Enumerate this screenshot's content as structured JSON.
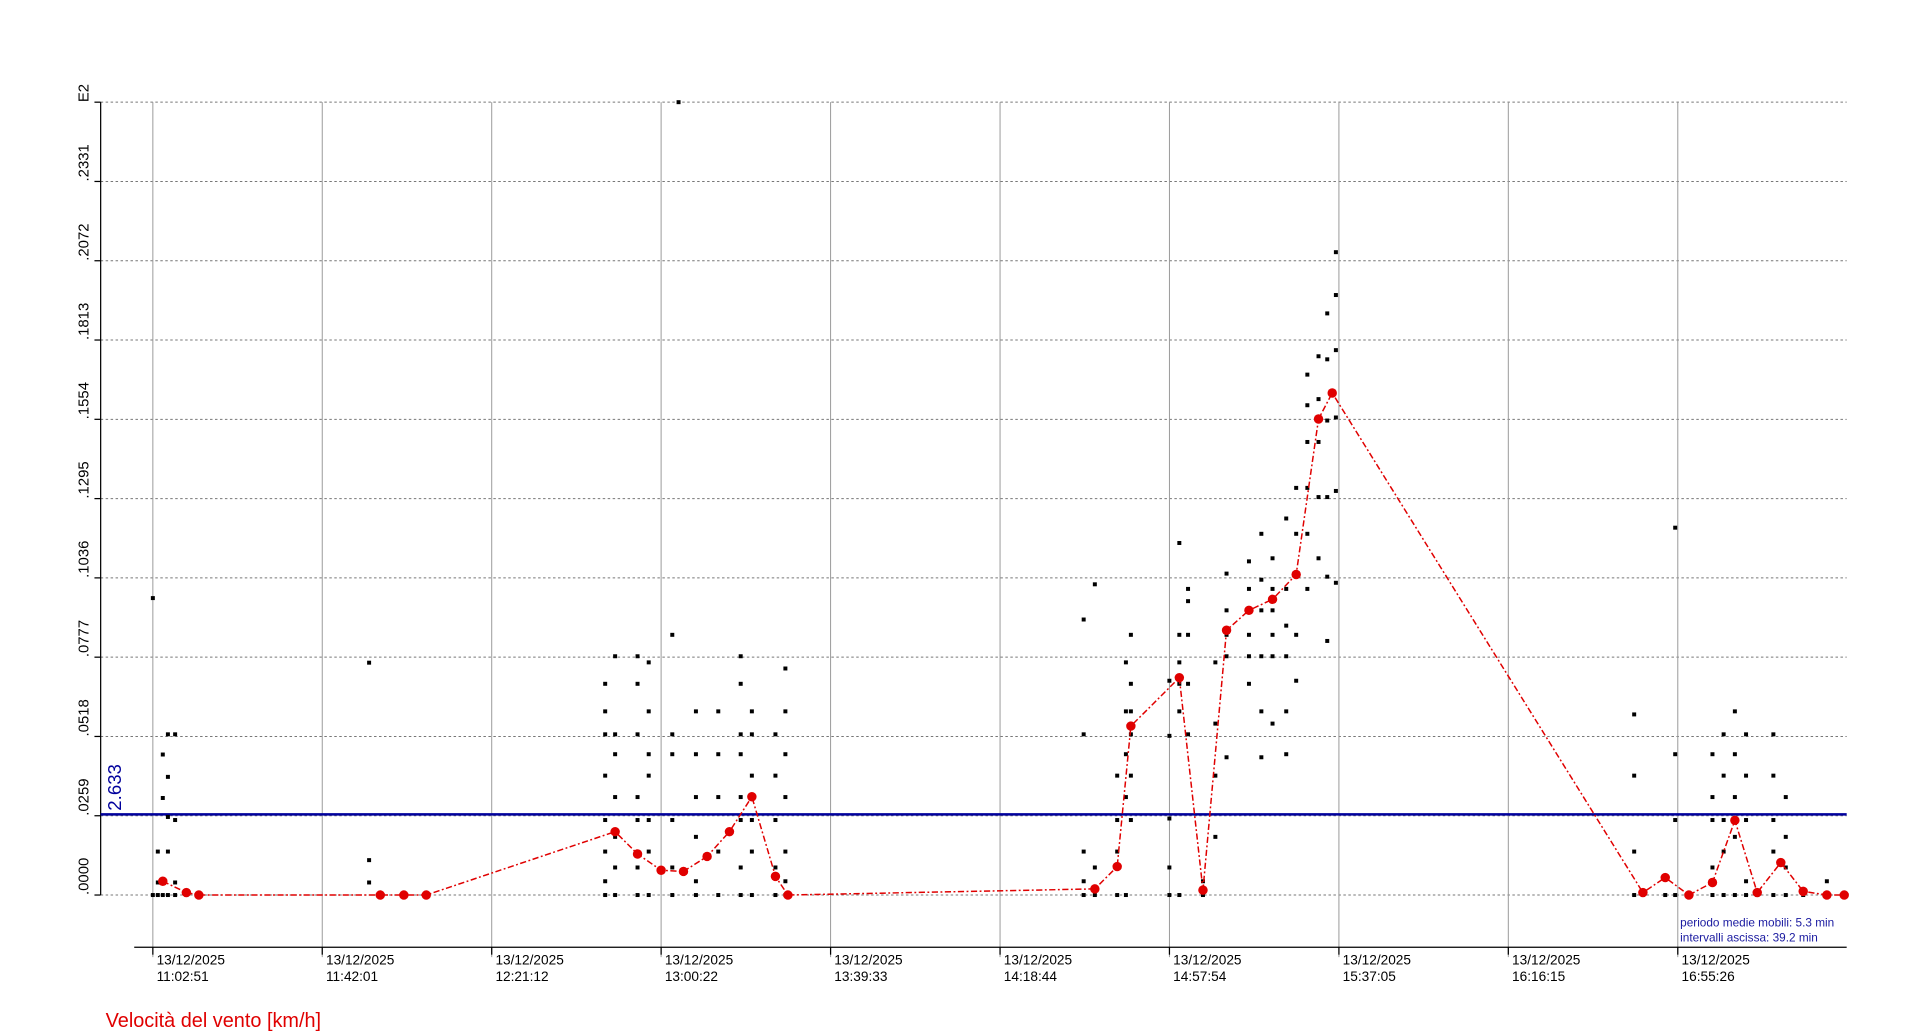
{
  "chart_data": {
    "type": "scatter",
    "ylabel": "Velocità del vento [km/h]",
    "notes": [
      "periodo medie mobili: 5.3 min",
      "intervalli ascissa: 39.2 min"
    ],
    "xlim": [
      "13/12/2025 10:50:47",
      "13/12/2025 17:34:29"
    ],
    "xticks": [
      "13/12/2025 11:02:51",
      "13/12/2025 11:42:01",
      "13/12/2025 12:21:12",
      "13/12/2025 13:00:22",
      "13/12/2025 13:39:33",
      "13/12/2025 14:18:44",
      "13/12/2025 14:57:54",
      "13/12/2025 15:37:05",
      "13/12/2025 16:16:15",
      "13/12/2025 16:55:26"
    ],
    "ylim": [
      0,
      0.259
    ],
    "yticks": [
      {
        "value": 0,
        "label": ".0000"
      },
      {
        "value": 0.0259,
        "label": ".0259"
      },
      {
        "value": 0.0518,
        "label": ".0518"
      },
      {
        "value": 0.0777,
        "label": ".0777"
      },
      {
        "value": 0.1036,
        "label": ".1036"
      },
      {
        "value": 0.1295,
        "label": ".1295"
      },
      {
        "value": 0.1554,
        "label": ".1554"
      },
      {
        "value": 0.1813,
        "label": ".1813"
      },
      {
        "value": 0.2072,
        "label": ".2072"
      },
      {
        "value": 0.2331,
        "label": ".2331"
      },
      {
        "value": 0.259,
        "label": "E2"
      }
    ],
    "grid": true,
    "threshold": {
      "value": 0.02633,
      "label": "2.633",
      "color": "#00009c"
    },
    "points": {
      "color": "#000000",
      "x": [
        "11:02:51",
        "11:02:51",
        "11:04:00",
        "11:04:00",
        "11:04:00",
        "11:05:09",
        "11:05:09",
        "11:05:09",
        "11:06:20",
        "11:06:20",
        "11:06:20",
        "11:06:20",
        "11:06:20",
        "11:08:00",
        "11:08:00",
        "11:08:00",
        "11:08:00",
        "11:10:36",
        "11:13:29",
        "11:52:51",
        "11:52:51",
        "11:52:51",
        "11:55:26",
        "12:00:53",
        "12:06:04",
        "12:47:26",
        "12:47:26",
        "12:47:26",
        "12:47:26",
        "12:47:26",
        "12:47:26",
        "12:47:26",
        "12:47:26",
        "12:49:44",
        "12:49:44",
        "12:49:44",
        "12:49:44",
        "12:49:44",
        "12:49:44",
        "12:49:44",
        "12:54:55",
        "12:54:55",
        "12:54:55",
        "12:54:55",
        "12:54:55",
        "12:54:55",
        "12:54:55",
        "12:57:30",
        "12:57:30",
        "12:57:30",
        "12:57:30",
        "12:57:30",
        "12:57:30",
        "12:57:30",
        "13:02:57",
        "13:02:57",
        "13:02:57",
        "13:02:57",
        "13:02:57",
        "13:02:57",
        "13:04:24",
        "13:08:25",
        "13:08:25",
        "13:08:25",
        "13:08:25",
        "13:08:25",
        "13:08:25",
        "13:13:35",
        "13:13:35",
        "13:13:35",
        "13:13:35",
        "13:13:35",
        "13:18:46",
        "13:18:46",
        "13:18:46",
        "13:18:46",
        "13:18:46",
        "13:18:46",
        "13:18:46",
        "13:18:46",
        "13:21:21",
        "13:21:21",
        "13:21:21",
        "13:21:21",
        "13:21:21",
        "13:21:21",
        "13:26:48",
        "13:26:48",
        "13:26:48",
        "13:26:48",
        "13:26:48",
        "13:29:06",
        "13:29:06",
        "13:29:06",
        "13:29:06",
        "13:29:06",
        "13:29:06",
        "13:29:06",
        "14:38:04",
        "14:38:04",
        "14:38:04",
        "14:38:04",
        "14:38:04",
        "14:40:39",
        "14:40:39",
        "14:40:39",
        "14:45:49",
        "14:45:49",
        "14:45:49",
        "14:45:49",
        "14:47:50",
        "14:47:50",
        "14:47:50",
        "14:47:50",
        "14:47:50",
        "14:48:59",
        "14:48:59",
        "14:48:59",
        "14:48:59",
        "14:48:59",
        "14:48:59",
        "14:57:53",
        "14:57:53",
        "14:57:53",
        "14:57:53",
        "14:57:53",
        "15:00:11",
        "15:00:11",
        "15:00:11",
        "15:00:11",
        "15:00:11",
        "15:00:11",
        "15:02:12",
        "15:02:12",
        "15:02:12",
        "15:02:12",
        "15:02:12",
        "15:05:39",
        "15:05:39",
        "15:08:31",
        "15:08:31",
        "15:08:31",
        "15:08:31",
        "15:11:06",
        "15:11:06",
        "15:11:06",
        "15:11:06",
        "15:11:06",
        "15:16:17",
        "15:16:17",
        "15:16:17",
        "15:16:17",
        "15:16:17",
        "15:16:17",
        "15:19:09",
        "15:19:09",
        "15:19:09",
        "15:19:09",
        "15:19:09",
        "15:19:09",
        "15:21:44",
        "15:21:44",
        "15:21:44",
        "15:21:44",
        "15:21:44",
        "15:21:44",
        "15:24:54",
        "15:24:54",
        "15:24:54",
        "15:24:54",
        "15:24:54",
        "15:24:54",
        "15:27:12",
        "15:27:12",
        "15:27:12",
        "15:27:12",
        "15:27:12",
        "15:29:47",
        "15:29:47",
        "15:29:47",
        "15:29:47",
        "15:29:47",
        "15:29:47",
        "15:32:22",
        "15:32:22",
        "15:32:22",
        "15:32:22",
        "15:32:22",
        "15:34:23",
        "15:34:23",
        "15:34:23",
        "15:34:23",
        "15:34:23",
        "15:34:23",
        "15:36:23",
        "15:36:23",
        "15:36:23",
        "15:36:23",
        "15:36:23",
        "15:36:23",
        "16:45:21",
        "16:45:21",
        "16:45:21",
        "16:45:21",
        "16:47:22",
        "16:52:32",
        "16:54:50",
        "16:54:50",
        "16:54:50",
        "16:54:50",
        "16:58:00",
        "17:03:27",
        "17:03:27",
        "17:03:27",
        "17:03:27",
        "17:03:27",
        "17:06:02",
        "17:06:02",
        "17:06:02",
        "17:06:02",
        "17:06:02",
        "17:08:38",
        "17:08:38",
        "17:08:38",
        "17:08:38",
        "17:08:38",
        "17:11:13",
        "17:11:13",
        "17:11:13",
        "17:11:13",
        "17:11:13",
        "17:13:48",
        "17:17:32",
        "17:17:32",
        "17:17:32",
        "17:17:32",
        "17:17:32",
        "17:20:24",
        "17:20:24",
        "17:20:24",
        "17:20:24",
        "17:24:26",
        "17:29:54",
        "17:29:54"
      ],
      "values": [
        0,
        0.097,
        0,
        0.0041,
        0.0142,
        0,
        0.0317,
        0.0459,
        0,
        0.0142,
        0.0255,
        0.0386,
        0.0525,
        0,
        0.0041,
        0.0245,
        0.0525,
        0,
        0,
        0.0041,
        0.0114,
        0.0759,
        0,
        0,
        0,
        0,
        0.0045,
        0.0142,
        0.0245,
        0.039,
        0.0525,
        0.06,
        0.069,
        0,
        0.009,
        0.019,
        0.032,
        0.046,
        0.0525,
        0.078,
        0,
        0.009,
        0.0245,
        0.032,
        0.0525,
        0.069,
        0.078,
        0,
        0.0142,
        0.0245,
        0.039,
        0.046,
        0.06,
        0.076,
        0,
        0.009,
        0.0245,
        0.046,
        0.0525,
        0.085,
        0.259,
        0,
        0.0045,
        0.019,
        0.032,
        0.046,
        0.06,
        0,
        0.0142,
        0.032,
        0.046,
        0.06,
        0,
        0.009,
        0.0245,
        0.032,
        0.046,
        0.0525,
        0.069,
        0.078,
        0,
        0.0142,
        0.0245,
        0.039,
        0.0525,
        0.06,
        0,
        0.009,
        0.0245,
        0.039,
        0.0525,
        0,
        0.0045,
        0.0142,
        0.032,
        0.046,
        0.06,
        0.074,
        0,
        0.0045,
        0.0142,
        0.0525,
        0.09,
        0,
        0.009,
        0.1015,
        0,
        0.0142,
        0.0245,
        0.039,
        0,
        0.032,
        0.046,
        0.06,
        0.076,
        0.0245,
        0.039,
        0.0525,
        0.06,
        0.069,
        0.085,
        0,
        0.009,
        0.025,
        0.052,
        0.07,
        0,
        0.06,
        0.069,
        0.076,
        0.085,
        0.115,
        0.0525,
        0.069,
        0.085,
        0.096,
        0.1,
        0,
        0.0045,
        0.019,
        0.039,
        0.056,
        0.076,
        0.045,
        0.078,
        0.085,
        0.093,
        0.105,
        0.069,
        0.078,
        0.085,
        0.093,
        0.1,
        0.109,
        0.045,
        0.06,
        0.078,
        0.093,
        0.103,
        0.118,
        0.056,
        0.078,
        0.085,
        0.093,
        0.1,
        0.11,
        0.046,
        0.06,
        0.078,
        0.088,
        0.1,
        0.123,
        0.07,
        0.085,
        0.105,
        0.118,
        0.133,
        0.1,
        0.118,
        0.133,
        0.148,
        0.16,
        0.17,
        0.11,
        0.13,
        0.148,
        0.162,
        0.176,
        0.083,
        0.104,
        0.13,
        0.155,
        0.175,
        0.19,
        0.102,
        0.132,
        0.156,
        0.178,
        0.196,
        0.21,
        0,
        0.0142,
        0.039,
        0.059,
        0,
        0,
        0,
        0.0245,
        0.046,
        0.12,
        0,
        0,
        0.009,
        0.0245,
        0.032,
        0.046,
        0,
        0.0142,
        0.0245,
        0.039,
        0.0525,
        0,
        0.019,
        0.032,
        0.046,
        0.06,
        0,
        0.0045,
        0.0245,
        0.039,
        0.0525,
        0,
        0,
        0.0142,
        0.0245,
        0.039,
        0.0525,
        0,
        0.009,
        0.019,
        0.032,
        0,
        0,
        0.0045
      ]
    },
    "moving_average": {
      "color": "#e00000",
      "x": [
        "11:05:09",
        "11:10:36",
        "11:13:29",
        "11:55:26",
        "12:00:53",
        "12:06:04",
        "12:49:44",
        "12:54:55",
        "13:00:22",
        "13:05:32",
        "13:11:00",
        "13:16:10",
        "13:21:21",
        "13:26:48",
        "13:29:41",
        "14:40:39",
        "14:45:49",
        "14:48:59",
        "15:00:11",
        "15:05:39",
        "15:11:06",
        "15:16:17",
        "15:21:44",
        "15:27:12",
        "15:32:22",
        "15:35:32",
        "16:47:22",
        "16:52:32",
        "16:58:00",
        "17:03:27",
        "17:08:38",
        "17:13:48",
        "17:19:15",
        "17:24:26",
        "17:29:54",
        "17:33:55"
      ],
      "values": [
        0.0045,
        0.0008,
        0,
        0,
        0,
        0,
        0.0207,
        0.0134,
        0.0081,
        0.0077,
        0.0126,
        0.0207,
        0.0321,
        0.0061,
        0,
        0.002,
        0.0093,
        0.0552,
        0.071,
        0.0016,
        0.0865,
        0.093,
        0.0966,
        0.1047,
        0.1555,
        0.164,
        0.0008,
        0.0057,
        0,
        0.0041,
        0.0244,
        0.0008,
        0.0106,
        0.0012,
        0,
        0
      ]
    }
  }
}
